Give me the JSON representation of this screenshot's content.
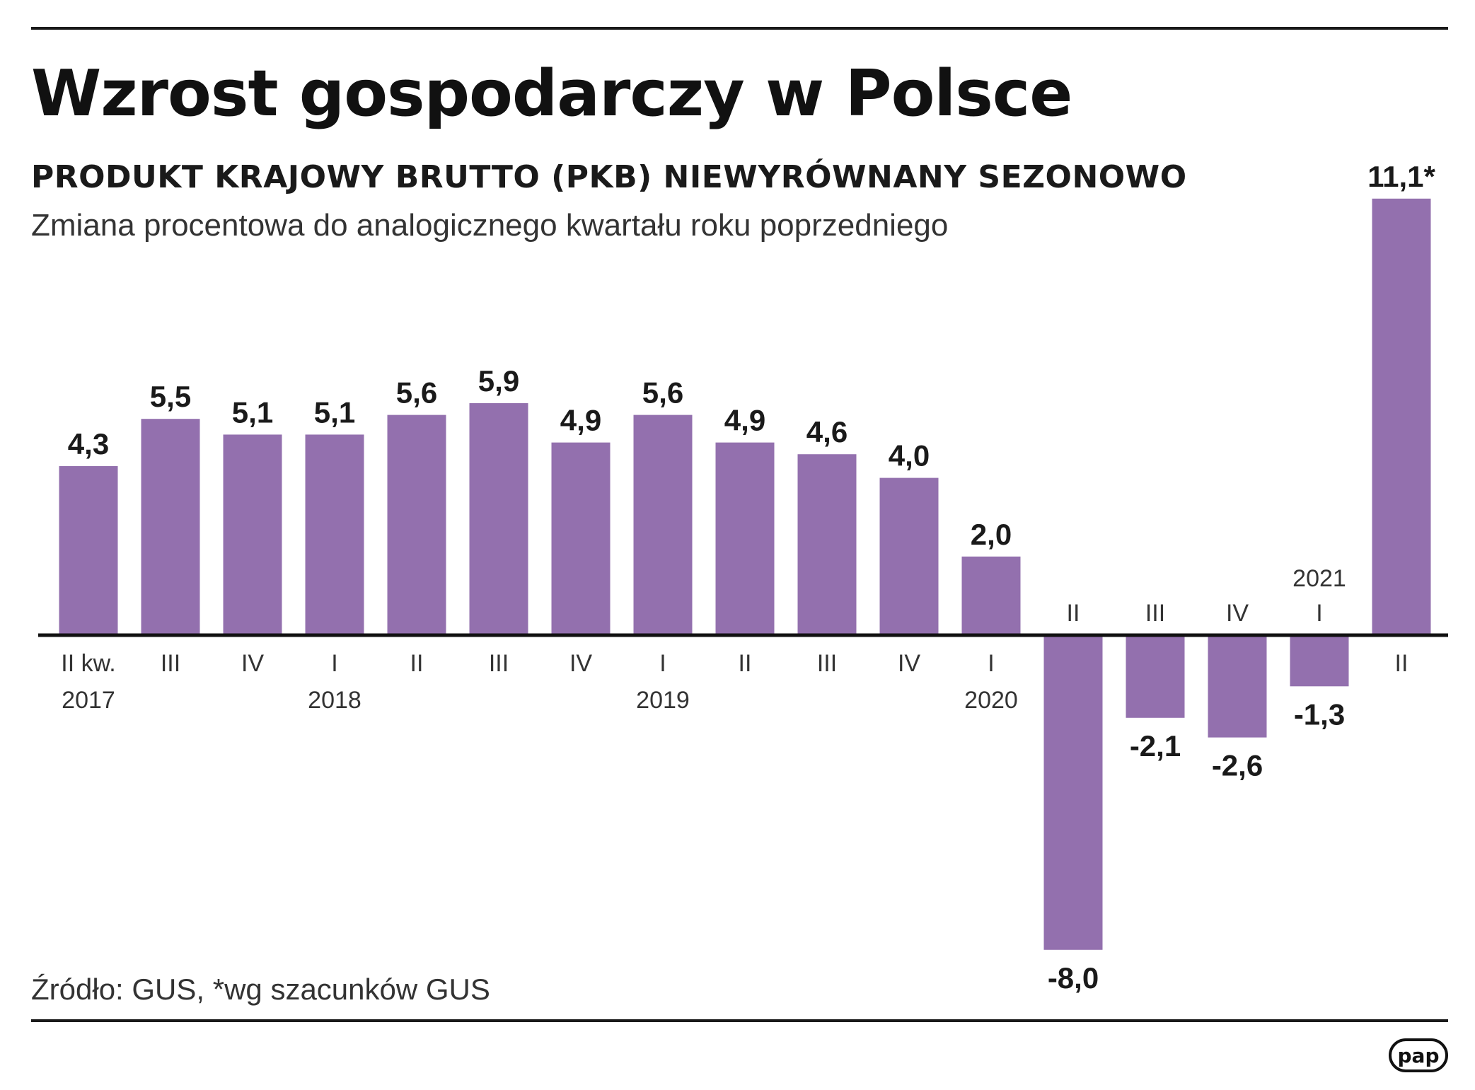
{
  "header": {
    "title": "Wzrost gospodarczy w Polsce",
    "subtitle": "PRODUKT KRAJOWY BRUTTO (PKB) NIEWYRÓWNANY SEZONOWO",
    "description": "Zmiana procentowa do analogicznego kwartału roku poprzedniego"
  },
  "footer": {
    "source": "Źródło: GUS, *wg szacunków GUS",
    "logo_text": "pap"
  },
  "colors": {
    "bar": "#9370ae",
    "axis": "#111111",
    "text": "#1a1a1a"
  },
  "chart_data": {
    "type": "bar",
    "categories": [
      "II kw.",
      "III",
      "IV",
      "I",
      "II",
      "III",
      "IV",
      "I",
      "II",
      "III",
      "IV",
      "I",
      "II",
      "III",
      "IV",
      "I",
      "II"
    ],
    "years": [
      {
        "label": "2017",
        "index": 0
      },
      {
        "label": "2018",
        "index": 3
      },
      {
        "label": "2019",
        "index": 7
      },
      {
        "label": "2020",
        "index": 11
      },
      {
        "label": "2021",
        "index": 15
      }
    ],
    "values": [
      4.3,
      5.5,
      5.1,
      5.1,
      5.6,
      5.9,
      4.9,
      5.6,
      4.9,
      4.6,
      4.0,
      2.0,
      -8.0,
      -2.1,
      -2.6,
      -1.3,
      11.1
    ],
    "value_labels": [
      "4,3",
      "5,5",
      "5,1",
      "5,1",
      "5,6",
      "5,9",
      "4,9",
      "5,6",
      "4,9",
      "4,6",
      "4,0",
      "2,0",
      "-8,0",
      "-2,1",
      "-2,6",
      "-1,3",
      "11,1*"
    ],
    "ylim": [
      -8.0,
      11.1
    ],
    "grid": false,
    "legend": "none"
  }
}
